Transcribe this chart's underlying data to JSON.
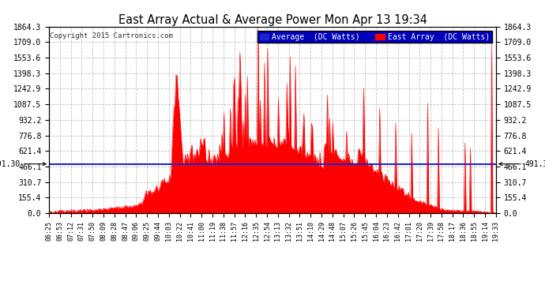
{
  "title": "East Array Actual & Average Power Mon Apr 13 19:34",
  "copyright": "Copyright 2015 Cartronics.com",
  "legend_average": "Average  (DC Watts)",
  "legend_east": "East Array  (DC Watts)",
  "average_value": 491.3,
  "y_max": 1864.3,
  "y_min": 0.0,
  "y_ticks": [
    0.0,
    155.4,
    310.7,
    466.1,
    621.4,
    776.8,
    932.2,
    1087.5,
    1242.9,
    1398.3,
    1553.6,
    1709.0,
    1864.3
  ],
  "background_color": "#ffffff",
  "plot_bg_color": "#ffffff",
  "grid_color": "#bbbbbb",
  "bar_color": "#ff0000",
  "avg_line_color": "#2222cc",
  "title_color": "#000000",
  "x_tick_labels": [
    "06:25",
    "06:53",
    "07:12",
    "07:31",
    "07:50",
    "08:09",
    "08:28",
    "08:47",
    "09:06",
    "09:25",
    "09:44",
    "10:03",
    "10:22",
    "10:41",
    "11:00",
    "11:19",
    "11:38",
    "11:57",
    "12:16",
    "12:35",
    "12:54",
    "13:13",
    "13:32",
    "13:51",
    "14:10",
    "14:29",
    "14:48",
    "15:07",
    "15:26",
    "15:45",
    "16:04",
    "16:23",
    "16:42",
    "17:01",
    "17:20",
    "17:39",
    "17:58",
    "18:17",
    "18:36",
    "18:55",
    "19:14",
    "19:33"
  ]
}
